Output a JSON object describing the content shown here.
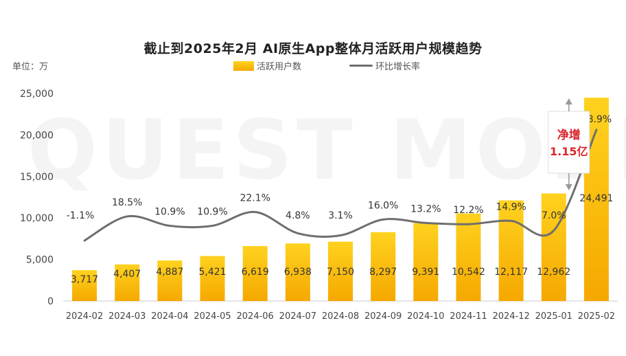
{
  "chart_data": {
    "type": "bar",
    "title": "截止到2025年2月 AI原生App整体月活跃用户规模趋势",
    "unit_label": "单位：万",
    "categories": [
      "2024-02",
      "2024-03",
      "2024-04",
      "2024-05",
      "2024-06",
      "2024-07",
      "2024-08",
      "2024-09",
      "2024-10",
      "2024-11",
      "2024-12",
      "2025-01",
      "2025-02"
    ],
    "series": [
      {
        "name": "活跃用户数",
        "type": "bar",
        "values": [
          3717,
          4407,
          4887,
          5421,
          6619,
          6938,
          7150,
          8297,
          9391,
          10542,
          12117,
          12962,
          24491
        ],
        "labels": [
          "3,717",
          "4,407",
          "4,887",
          "5,421",
          "6,619",
          "6,938",
          "7,150",
          "8,297",
          "9,391",
          "10,542",
          "12,117",
          "12,962",
          "24,491"
        ]
      },
      {
        "name": "环比增长率",
        "type": "line",
        "values": [
          -1.1,
          18.5,
          10.9,
          10.9,
          22.1,
          4.8,
          3.1,
          16.0,
          13.2,
          12.2,
          14.9,
          7.0,
          88.9
        ],
        "labels": [
          "-1.1%",
          "18.5%",
          "10.9%",
          "10.9%",
          "22.1%",
          "4.8%",
          "3.1%",
          "16.0%",
          "13.2%",
          "12.2%",
          "14.9%",
          "7.0%",
          "88.9%"
        ]
      }
    ],
    "ylim": [
      0,
      25000
    ],
    "yticks": [
      "0",
      "5,000",
      "10,000",
      "15,000",
      "20,000",
      "25,000"
    ],
    "annotation": {
      "line1": "净增",
      "line2": "1.15亿"
    },
    "watermark": "QUEST MOBILE",
    "colors": {
      "bar_top": "#ffd21f",
      "bar_bottom": "#f5a800",
      "line": "#6e6e6e",
      "annotation": "#d9262b"
    }
  }
}
